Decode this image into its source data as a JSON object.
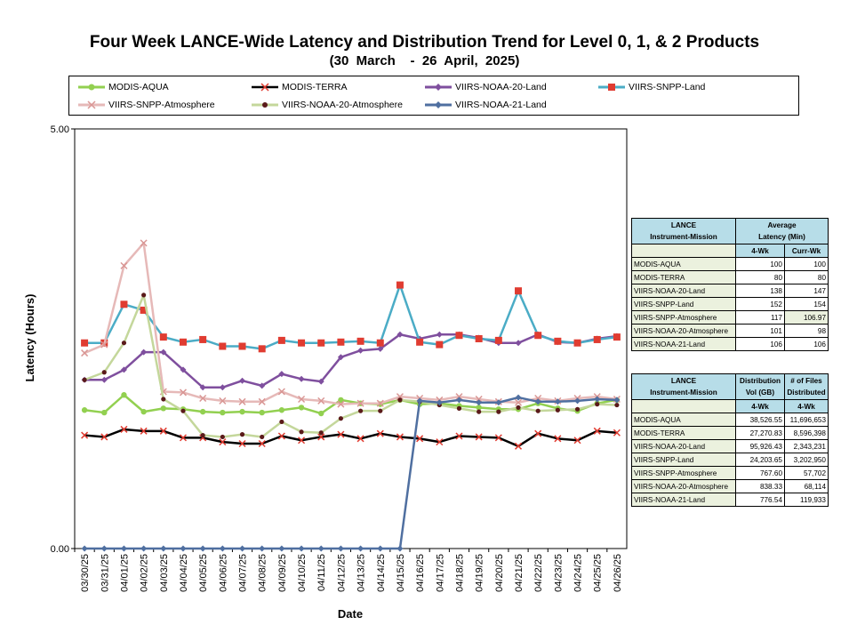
{
  "chart_data": {
    "type": "line",
    "title": "Four Week LANCE-Wide Latency and Distribution Trend for Level 0, 1, & 2 Products",
    "subtitle": "(30  March    -  26  April,  2025)",
    "xlabel": "Date",
    "ylabel": "Latency (Hours)",
    "ylim": [
      0,
      5
    ],
    "ytick_labels": [
      "5.00",
      "0.00"
    ],
    "grid": false,
    "legend_position": "top",
    "x": [
      "03/30/25",
      "03/31/25",
      "04/01/25",
      "04/02/25",
      "04/03/25",
      "04/04/25",
      "04/05/25",
      "04/06/25",
      "04/07/25",
      "04/08/25",
      "04/09/25",
      "04/10/25",
      "04/11/25",
      "04/12/25",
      "04/13/25",
      "04/14/25",
      "04/15/25",
      "04/16/25",
      "04/17/25",
      "04/18/25",
      "04/19/25",
      "04/20/25",
      "04/21/25",
      "04/22/25",
      "04/23/25",
      "04/24/25",
      "04/25/25",
      "04/26/25"
    ],
    "series": [
      {
        "name": "MODIS-AQUA",
        "color": "#92d050",
        "marker": "circle",
        "values": [
          1.65,
          1.62,
          1.83,
          1.63,
          1.67,
          1.66,
          1.63,
          1.62,
          1.63,
          1.62,
          1.65,
          1.68,
          1.61,
          1.77,
          1.73,
          1.72,
          1.77,
          1.72,
          1.73,
          1.7,
          1.68,
          1.66,
          1.66,
          1.73,
          1.67,
          1.64,
          1.73,
          1.77
        ]
      },
      {
        "name": "MODIS-TERRA",
        "color": "#000000",
        "marker": "x",
        "values": [
          1.35,
          1.33,
          1.42,
          1.4,
          1.4,
          1.32,
          1.32,
          1.27,
          1.25,
          1.25,
          1.34,
          1.29,
          1.33,
          1.36,
          1.31,
          1.37,
          1.33,
          1.31,
          1.27,
          1.34,
          1.33,
          1.32,
          1.22,
          1.37,
          1.31,
          1.29,
          1.4,
          1.38
        ]
      },
      {
        "name": "VIIRS-NOAA-20-Land",
        "color": "#7f4f9e",
        "marker": "diamond",
        "values": [
          2.01,
          2.01,
          2.13,
          2.34,
          2.34,
          2.13,
          1.92,
          1.92,
          2.0,
          1.94,
          2.08,
          2.02,
          1.99,
          2.28,
          2.36,
          2.38,
          2.55,
          2.5,
          2.55,
          2.55,
          2.51,
          2.45,
          2.45,
          2.55,
          2.46,
          2.45,
          2.5,
          2.53
        ]
      },
      {
        "name": "VIIRS-SNPP-Land",
        "color": "#4bacc6",
        "marker": "square",
        "values": [
          2.45,
          2.45,
          2.91,
          2.84,
          2.52,
          2.46,
          2.49,
          2.41,
          2.41,
          2.38,
          2.48,
          2.45,
          2.45,
          2.46,
          2.47,
          2.45,
          3.14,
          2.46,
          2.43,
          2.54,
          2.5,
          2.48,
          3.07,
          2.54,
          2.47,
          2.45,
          2.49,
          2.52
        ]
      },
      {
        "name": "VIIRS-SNPP-Atmosphere",
        "color": "#e6b9b8",
        "marker": "x",
        "values": [
          2.33,
          2.43,
          3.37,
          3.64,
          1.87,
          1.86,
          1.79,
          1.76,
          1.75,
          1.75,
          1.87,
          1.78,
          1.76,
          1.72,
          1.73,
          1.73,
          1.81,
          1.79,
          1.77,
          1.81,
          1.78,
          1.75,
          1.74,
          1.79,
          1.76,
          1.79,
          1.81,
          1.78
        ]
      },
      {
        "name": "VIIRS-NOAA-20-Atmosphere",
        "color": "#c4d79b",
        "marker": "dot",
        "values": [
          2.01,
          2.1,
          2.45,
          3.02,
          1.78,
          1.64,
          1.35,
          1.33,
          1.36,
          1.33,
          1.51,
          1.39,
          1.38,
          1.55,
          1.64,
          1.64,
          1.77,
          1.75,
          1.71,
          1.67,
          1.63,
          1.63,
          1.68,
          1.64,
          1.65,
          1.66,
          1.72,
          1.71
        ]
      },
      {
        "name": "VIIRS-NOAA-21-Land",
        "color": "#4f6fa0",
        "marker": "diamond",
        "values": [
          0,
          0,
          0,
          0,
          0,
          0,
          0,
          0,
          0,
          0,
          0,
          0,
          0,
          0,
          0,
          0,
          0,
          1.76,
          1.74,
          1.77,
          1.74,
          1.74,
          1.8,
          1.75,
          1.75,
          1.76,
          1.78,
          1.77
        ]
      }
    ]
  },
  "latency_table": {
    "header_col1_line1": "LANCE",
    "header_col1_line2": "Instrument-Mission",
    "header_avg_line1": "Average",
    "header_avg_line2": "Latency (Min)",
    "sub_4wk": "4-Wk",
    "sub_curr": "Curr-Wk",
    "rows": [
      {
        "name": "MODIS-AQUA",
        "wk4": "100",
        "curr": "100"
      },
      {
        "name": "MODIS-TERRA",
        "wk4": "80",
        "curr": "80"
      },
      {
        "name": "VIIRS-NOAA-20-Land",
        "wk4": "138",
        "curr": "147"
      },
      {
        "name": "VIIRS-SNPP-Land",
        "wk4": "152",
        "curr": "154"
      },
      {
        "name": "VIIRS-SNPP-Atmosphere",
        "wk4": "117",
        "curr": "106.97"
      },
      {
        "name": "VIIRS-NOAA-20-Atmosphere",
        "wk4": "101",
        "curr": "98"
      },
      {
        "name": "VIIRS-NOAA-21-Land",
        "wk4": "106",
        "curr": "106"
      }
    ]
  },
  "distribution_table": {
    "header_col1_line1": "LANCE",
    "header_col1_line2": "Instrument-Mission",
    "header_vol_line1": "Distribution",
    "header_vol_line2": "Vol (GB)",
    "header_files_line1": "# of Files",
    "header_files_line2": "Distributed",
    "sub_4wk_a": "4-Wk",
    "sub_4wk_b": "4-Wk",
    "rows": [
      {
        "name": "MODIS-AQUA",
        "vol": "38,526.55",
        "files": "11,696,653"
      },
      {
        "name": "MODIS-TERRA",
        "vol": "27,270.83",
        "files": "8,596,398"
      },
      {
        "name": "VIIRS-NOAA-20-Land",
        "vol": "95,926.43",
        "files": "2,343,231"
      },
      {
        "name": "VIIRS-SNPP-Land",
        "vol": "24,203.65",
        "files": "3,202,950"
      },
      {
        "name": "VIIRS-SNPP-Atmosphere",
        "vol": "767.60",
        "files": "57,702"
      },
      {
        "name": "VIIRS-NOAA-20-Atmosphere",
        "vol": "838.33",
        "files": "68,114"
      },
      {
        "name": "VIIRS-NOAA-21-Land",
        "vol": "776.54",
        "files": "119,933"
      }
    ]
  }
}
